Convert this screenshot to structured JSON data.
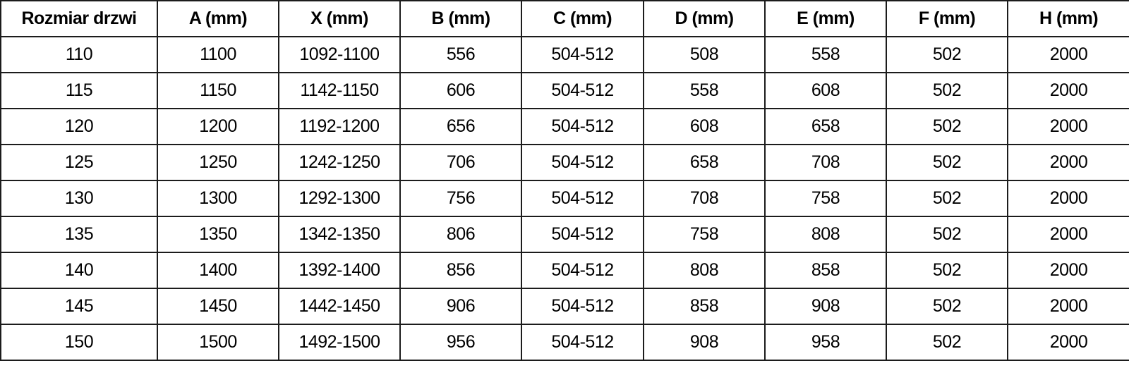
{
  "table": {
    "name": "door-dimensions-table",
    "columns": [
      "Rozmiar drzwi",
      "A (mm)",
      "X (mm)",
      "B (mm)",
      "C (mm)",
      "D (mm)",
      "E (mm)",
      "F (mm)",
      "H (mm)"
    ],
    "rows": [
      [
        "110",
        "1100",
        "1092-1100",
        "556",
        "504-512",
        "508",
        "558",
        "502",
        "2000"
      ],
      [
        "115",
        "1150",
        "1142-1150",
        "606",
        "504-512",
        "558",
        "608",
        "502",
        "2000"
      ],
      [
        "120",
        "1200",
        "1192-1200",
        "656",
        "504-512",
        "608",
        "658",
        "502",
        "2000"
      ],
      [
        "125",
        "1250",
        "1242-1250",
        "706",
        "504-512",
        "658",
        "708",
        "502",
        "2000"
      ],
      [
        "130",
        "1300",
        "1292-1300",
        "756",
        "504-512",
        "708",
        "758",
        "502",
        "2000"
      ],
      [
        "135",
        "1350",
        "1342-1350",
        "806",
        "504-512",
        "758",
        "808",
        "502",
        "2000"
      ],
      [
        "140",
        "1400",
        "1392-1400",
        "856",
        "504-512",
        "808",
        "858",
        "502",
        "2000"
      ],
      [
        "145",
        "1450",
        "1442-1450",
        "906",
        "504-512",
        "858",
        "908",
        "502",
        "2000"
      ],
      [
        "150",
        "1500",
        "1492-1500",
        "956",
        "504-512",
        "908",
        "958",
        "502",
        "2000"
      ]
    ],
    "colors": {
      "border": "#1c1c1c",
      "text": "#000000",
      "background": "#ffffff"
    }
  }
}
